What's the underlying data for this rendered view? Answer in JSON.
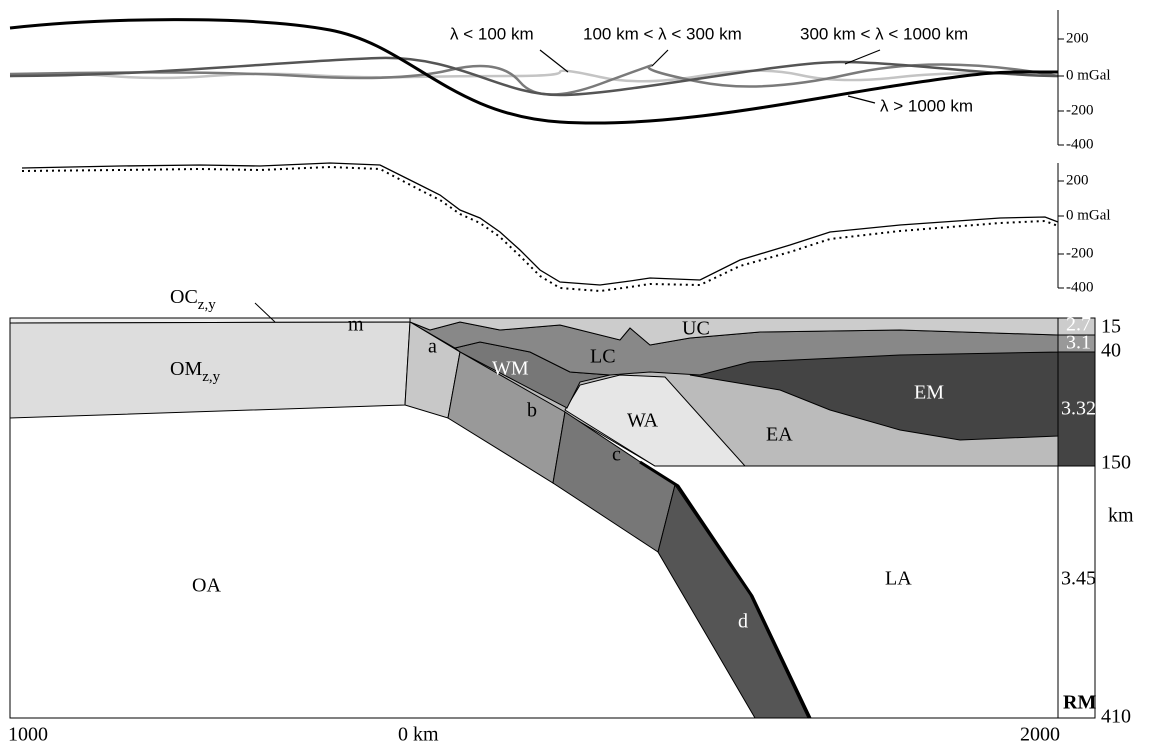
{
  "top_panel": {
    "curve_labels": [
      "λ < 100 km",
      "100 km < λ < 300 km",
      "300 km < λ < 1000 km",
      "λ > 1000 km"
    ],
    "axis_labels": [
      "200",
      "0 mGal",
      "-200",
      "-400"
    ]
  },
  "middle_panel": {
    "axis_labels": [
      "200",
      "0 mGal",
      "-200",
      "-400"
    ]
  },
  "section": {
    "oc": {
      "main": "OC",
      "sub": "z,y"
    },
    "om": {
      "main": "OM",
      "sub": "z,y"
    },
    "regions": [
      "m",
      "a",
      "b",
      "c",
      "d",
      "WM",
      "LC",
      "UC",
      "WA",
      "EA",
      "EM",
      "OA",
      "LA"
    ],
    "densities": [
      "2.7",
      "3.1",
      "3.32",
      "3.45"
    ],
    "depths": [
      "15",
      "40",
      "150",
      "km",
      "410"
    ],
    "reference": "RM"
  },
  "x_axis": [
    "1000",
    "0 km",
    "2000"
  ]
}
